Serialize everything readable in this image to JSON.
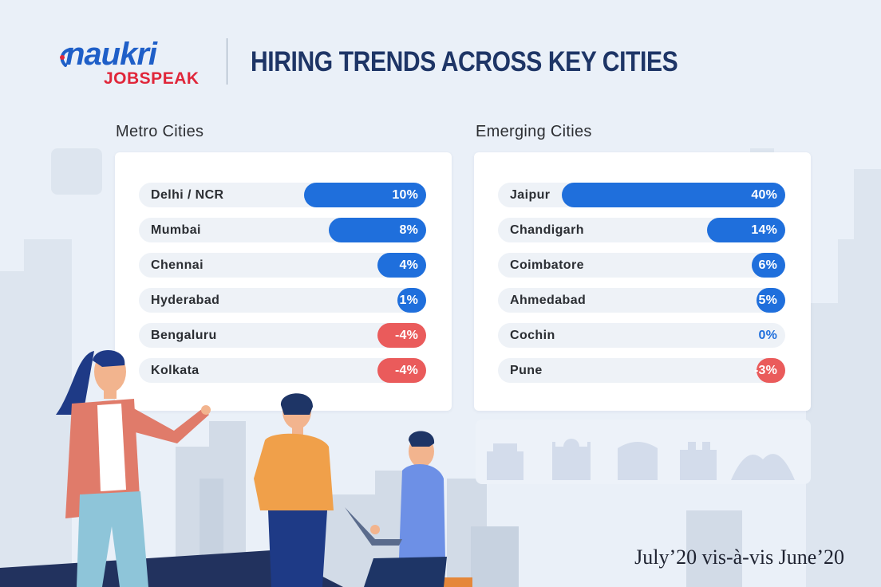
{
  "brand": {
    "name": "naukri",
    "sub": "JOBSPEAK"
  },
  "title": "HIRING TRENDS ACROSS KEY CITIES",
  "footnote": "July’20 vis-à-vis June’20",
  "colors": {
    "positive": "#1f6fdc",
    "negative": "#ea5b5b",
    "title": "#1e3566",
    "brand_blue": "#1f5fc8",
    "brand_red": "#e0263a"
  },
  "chart_data": [
    {
      "type": "bar",
      "orientation": "horizontal",
      "title": "Metro Cities",
      "unit": "%",
      "categories": [
        "Delhi / NCR",
        "Mumbai",
        "Chennai",
        "Hyderabad",
        "Bengaluru",
        "Kolkata"
      ],
      "values": [
        10,
        8,
        4,
        1,
        -4,
        -4
      ],
      "labels": [
        "10%",
        "8%",
        "4%",
        "1%",
        "-4%",
        "-4%"
      ]
    },
    {
      "type": "bar",
      "orientation": "horizontal",
      "title": "Emerging Cities",
      "unit": "%",
      "categories": [
        "Jaipur",
        "Chandigarh",
        "Coimbatore",
        "Ahmedabad",
        "Cochin",
        "Pune"
      ],
      "values": [
        40,
        14,
        6,
        5,
        0,
        -3
      ],
      "labels": [
        "40%",
        "14%",
        "6%",
        "5%",
        "0%",
        "-3%"
      ]
    }
  ]
}
